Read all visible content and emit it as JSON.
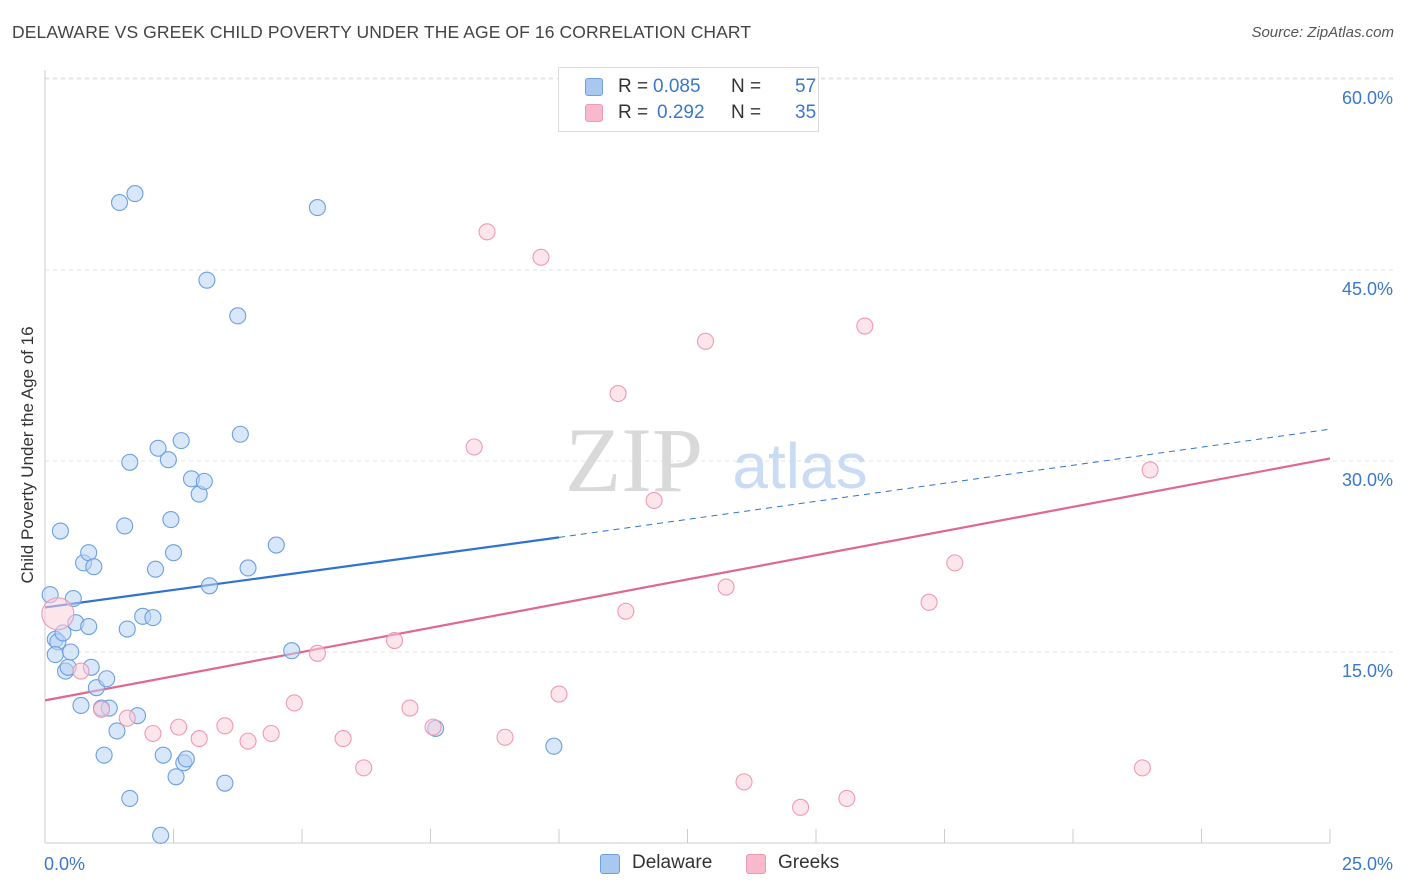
{
  "title": "DELAWARE VS GREEK CHILD POVERTY UNDER THE AGE OF 16 CORRELATION CHART",
  "source": "Source: ZipAtlas.com",
  "watermark": {
    "zip": "ZIP",
    "atlas": "atlas"
  },
  "legend": {
    "rows": [
      {
        "r_label": "R =",
        "r_value": "0.085",
        "n_label": "N =",
        "n_value": "57",
        "color": "#a9c8f0"
      },
      {
        "r_label": "R =",
        "r_value": "0.292",
        "n_label": "N =",
        "n_value": "35",
        "color": "#f7b9cb"
      }
    ]
  },
  "bottom_legend": {
    "delaware": "Delaware",
    "greeks": "Greeks"
  },
  "chart_data": {
    "type": "scatter",
    "ylabel": "Child Poverty Under the Age of 16",
    "x_tick_labels": [
      "0.0%",
      "25.0%"
    ],
    "y_tick_labels": [
      "15.0%",
      "30.0%",
      "45.0%",
      "60.0%"
    ],
    "xlim": [
      0,
      25
    ],
    "ylim": [
      0,
      61
    ],
    "grid": true,
    "series": [
      {
        "name": "Delaware",
        "color": "#6ea0e0",
        "fill": "#b8d3f4",
        "trend": {
          "x0": 0,
          "y0": 18.5,
          "x1": 10,
          "y1": 24.0,
          "dashed_to_x": 25,
          "dashed_to_y": 32.5,
          "color": "#2f72d0"
        },
        "points": [
          [
            0.1,
            19.5
          ],
          [
            0.2,
            16.0
          ],
          [
            0.25,
            15.8
          ],
          [
            0.2,
            14.8
          ],
          [
            0.3,
            24.5
          ],
          [
            0.35,
            16.5
          ],
          [
            0.4,
            13.5
          ],
          [
            0.45,
            13.8
          ],
          [
            0.5,
            15.0
          ],
          [
            0.55,
            19.2
          ],
          [
            0.6,
            17.3
          ],
          [
            0.7,
            10.8
          ],
          [
            0.75,
            22.0
          ],
          [
            0.85,
            17.0
          ],
          [
            0.85,
            22.8
          ],
          [
            0.9,
            13.8
          ],
          [
            0.95,
            21.7
          ],
          [
            1.0,
            12.2
          ],
          [
            1.1,
            10.6
          ],
          [
            1.15,
            6.9
          ],
          [
            1.2,
            12.9
          ],
          [
            1.25,
            10.6
          ],
          [
            1.4,
            8.8
          ],
          [
            1.45,
            50.3
          ],
          [
            1.55,
            24.9
          ],
          [
            1.6,
            16.8
          ],
          [
            1.65,
            29.9
          ],
          [
            1.65,
            3.5
          ],
          [
            1.75,
            51.0
          ],
          [
            1.8,
            10.0
          ],
          [
            1.9,
            17.8
          ],
          [
            2.1,
            17.7
          ],
          [
            2.15,
            21.5
          ],
          [
            2.2,
            31.0
          ],
          [
            2.25,
            0.6
          ],
          [
            2.3,
            6.9
          ],
          [
            2.4,
            30.1
          ],
          [
            2.45,
            25.4
          ],
          [
            2.5,
            22.8
          ],
          [
            2.55,
            5.2
          ],
          [
            2.65,
            31.6
          ],
          [
            2.7,
            6.3
          ],
          [
            2.75,
            6.6
          ],
          [
            2.85,
            28.6
          ],
          [
            3.0,
            27.4
          ],
          [
            3.1,
            28.4
          ],
          [
            3.15,
            44.2
          ],
          [
            3.2,
            20.2
          ],
          [
            3.5,
            4.7
          ],
          [
            3.75,
            41.4
          ],
          [
            3.8,
            32.1
          ],
          [
            3.95,
            21.6
          ],
          [
            4.5,
            23.4
          ],
          [
            4.8,
            15.1
          ],
          [
            5.3,
            49.9
          ],
          [
            7.6,
            9.0
          ],
          [
            9.9,
            7.6
          ]
        ]
      },
      {
        "name": "Greeks",
        "color": "#ee9ab4",
        "fill": "#fbd0dc",
        "trend": {
          "x0": 0,
          "y0": 11.2,
          "x1": 25,
          "y1": 30.2,
          "color": "#e0678f"
        },
        "points": [
          [
            0.25,
            18.0
          ],
          [
            0.7,
            13.5
          ],
          [
            1.1,
            10.5
          ],
          [
            1.6,
            9.8
          ],
          [
            2.1,
            8.6
          ],
          [
            2.6,
            9.1
          ],
          [
            3.0,
            8.2
          ],
          [
            3.5,
            9.2
          ],
          [
            3.95,
            8.0
          ],
          [
            4.4,
            8.6
          ],
          [
            4.85,
            11.0
          ],
          [
            5.3,
            14.9
          ],
          [
            5.8,
            8.2
          ],
          [
            6.2,
            5.9
          ],
          [
            6.8,
            15.9
          ],
          [
            7.1,
            10.6
          ],
          [
            7.55,
            9.1
          ],
          [
            8.35,
            31.1
          ],
          [
            8.6,
            48.0
          ],
          [
            8.95,
            8.3
          ],
          [
            9.65,
            46.0
          ],
          [
            10.0,
            11.7
          ],
          [
            11.15,
            35.3
          ],
          [
            11.3,
            18.2
          ],
          [
            11.85,
            26.9
          ],
          [
            12.85,
            39.4
          ],
          [
            13.25,
            20.1
          ],
          [
            13.6,
            4.8
          ],
          [
            14.7,
            2.8
          ],
          [
            15.6,
            3.5
          ],
          [
            15.95,
            40.6
          ],
          [
            17.2,
            18.9
          ],
          [
            17.7,
            22.0
          ],
          [
            21.35,
            5.9
          ],
          [
            21.5,
            29.3
          ]
        ]
      }
    ]
  }
}
